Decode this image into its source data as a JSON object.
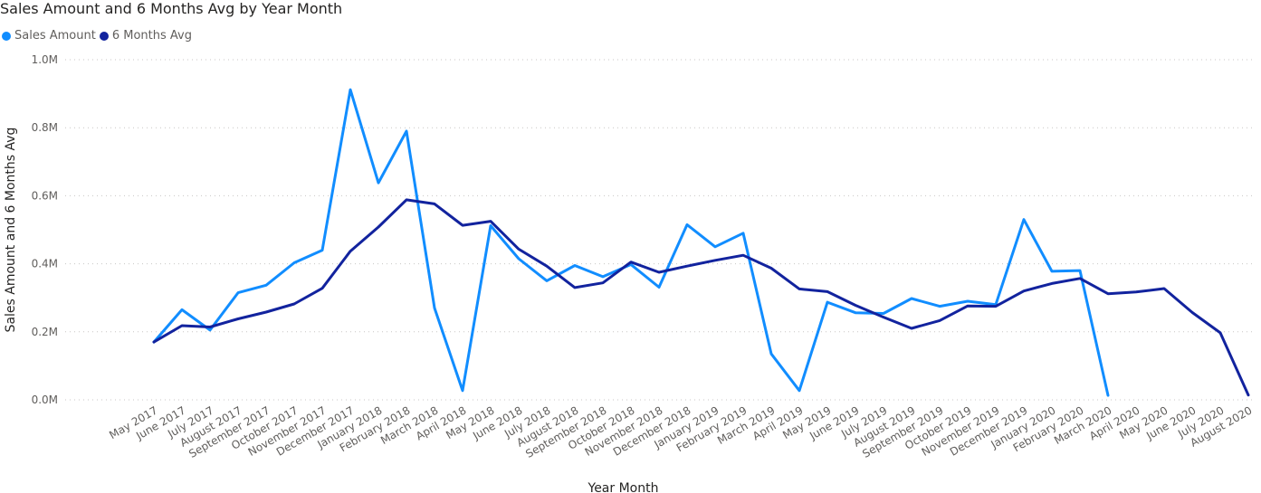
{
  "chart_data": {
    "type": "line",
    "title": "Sales Amount and 6 Months Avg by Year Month",
    "xlabel": "Year Month",
    "ylabel": "Sales Amount and 6 Months Avg",
    "ylim": [
      0,
      1000000
    ],
    "yticks": [
      "0.0M",
      "0.2M",
      "0.4M",
      "0.6M",
      "0.8M",
      "1.0M"
    ],
    "legend_position": "top-left",
    "grid": true,
    "categories": [
      "May 2017",
      "June 2017",
      "July 2017",
      "August 2017",
      "September 2017",
      "October 2017",
      "November 2017",
      "December 2017",
      "January 2018",
      "February 2018",
      "March 2018",
      "April 2018",
      "May 2018",
      "June 2018",
      "July 2018",
      "August 2018",
      "September 2018",
      "October 2018",
      "November 2018",
      "December 2018",
      "January 2019",
      "February 2019",
      "March 2019",
      "April 2019",
      "May 2019",
      "June 2019",
      "July 2019",
      "August 2019",
      "September 2019",
      "October 2019",
      "November 2019",
      "December 2019",
      "January 2020",
      "February 2020",
      "March 2020",
      "April 2020",
      "May 2020",
      "June 2020",
      "July 2020",
      "August 2020"
    ],
    "series": [
      {
        "name": "Sales Amount",
        "color": "#118DFF",
        "values": [
          170000,
          265000,
          205000,
          315000,
          337000,
          403000,
          440000,
          912000,
          638000,
          790000,
          270000,
          27000,
          512000,
          415000,
          350000,
          395000,
          362000,
          398000,
          331000,
          515000,
          450000,
          490000,
          135000,
          27000,
          287000,
          256000,
          254000,
          298000,
          275000,
          290000,
          280000,
          530000,
          378000,
          380000,
          13000,
          null,
          null,
          null,
          null,
          null
        ]
      },
      {
        "name": "6 Months Avg",
        "color": "#12239E",
        "values": [
          170000,
          218000,
          214000,
          238000,
          258000,
          282000,
          328000,
          437000,
          508000,
          588000,
          576000,
          513000,
          525000,
          443000,
          393000,
          330000,
          344000,
          405000,
          375000,
          393000,
          410000,
          425000,
          387000,
          326000,
          318000,
          278000,
          243000,
          210000,
          233000,
          276000,
          275000,
          320000,
          342000,
          357000,
          312000,
          317000,
          327000,
          257000,
          197000,
          14000
        ]
      }
    ]
  }
}
